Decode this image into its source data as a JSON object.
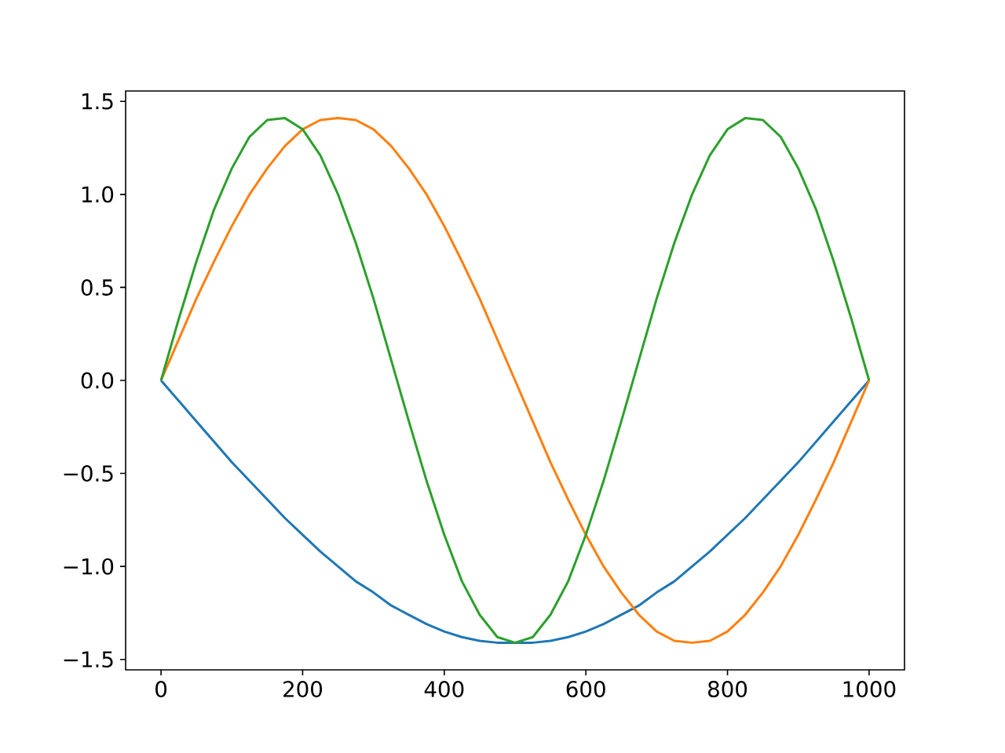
{
  "chart_data": {
    "type": "line",
    "x": [
      0,
      25,
      50,
      75,
      100,
      125,
      150,
      175,
      200,
      225,
      250,
      275,
      300,
      325,
      350,
      375,
      400,
      425,
      450,
      475,
      500,
      525,
      550,
      575,
      600,
      625,
      650,
      675,
      700,
      725,
      750,
      775,
      800,
      825,
      850,
      875,
      900,
      925,
      950,
      975,
      1000
    ],
    "series": [
      {
        "color": "#1f77b4",
        "values": [
          0,
          -0.11,
          -0.22,
          -0.33,
          -0.44,
          -0.54,
          -0.64,
          -0.74,
          -0.83,
          -0.92,
          -1.0,
          -1.08,
          -1.14,
          -1.21,
          -1.26,
          -1.31,
          -1.35,
          -1.38,
          -1.4,
          -1.41,
          -1.41,
          -1.41,
          -1.4,
          -1.38,
          -1.35,
          -1.31,
          -1.26,
          -1.21,
          -1.14,
          -1.08,
          -1.0,
          -0.92,
          -0.83,
          -0.74,
          -0.64,
          -0.54,
          -0.44,
          -0.33,
          -0.22,
          -0.11,
          0
        ]
      },
      {
        "color": "#ff7f0e",
        "values": [
          0,
          0.22,
          0.44,
          0.64,
          0.83,
          1.0,
          1.14,
          1.26,
          1.35,
          1.4,
          1.41,
          1.4,
          1.35,
          1.26,
          1.14,
          1.0,
          0.83,
          0.64,
          0.44,
          0.22,
          0,
          -0.22,
          -0.44,
          -0.64,
          -0.83,
          -1.0,
          -1.14,
          -1.26,
          -1.35,
          -1.4,
          -1.41,
          -1.4,
          -1.35,
          -1.26,
          -1.14,
          -1.0,
          -0.83,
          -0.64,
          -0.44,
          -0.22,
          0
        ]
      },
      {
        "color": "#2ca02c",
        "values": [
          0,
          0.33,
          0.64,
          0.92,
          1.14,
          1.31,
          1.4,
          1.41,
          1.35,
          1.21,
          1.0,
          0.74,
          0.44,
          0.11,
          -0.22,
          -0.54,
          -0.83,
          -1.08,
          -1.26,
          -1.38,
          -1.41,
          -1.38,
          -1.26,
          -1.08,
          -0.83,
          -0.54,
          -0.22,
          0.11,
          0.44,
          0.74,
          1.0,
          1.21,
          1.35,
          1.41,
          1.4,
          1.31,
          1.14,
          0.92,
          0.64,
          0.33,
          0
        ]
      }
    ],
    "xlim": [
      -50,
      1050
    ],
    "ylim": [
      -1.556,
      1.556
    ],
    "xticks": [
      0,
      200,
      400,
      600,
      800,
      1000
    ],
    "yticks": [
      {
        "value": -1.5,
        "label": "−1.5"
      },
      {
        "value": -1.0,
        "label": "−1.0"
      },
      {
        "value": -0.5,
        "label": "−0.5"
      },
      {
        "value": 0.0,
        "label": "0.0"
      },
      {
        "value": 0.5,
        "label": "0.5"
      },
      {
        "value": 1.0,
        "label": "1.0"
      },
      {
        "value": 1.5,
        "label": "1.5"
      }
    ]
  }
}
